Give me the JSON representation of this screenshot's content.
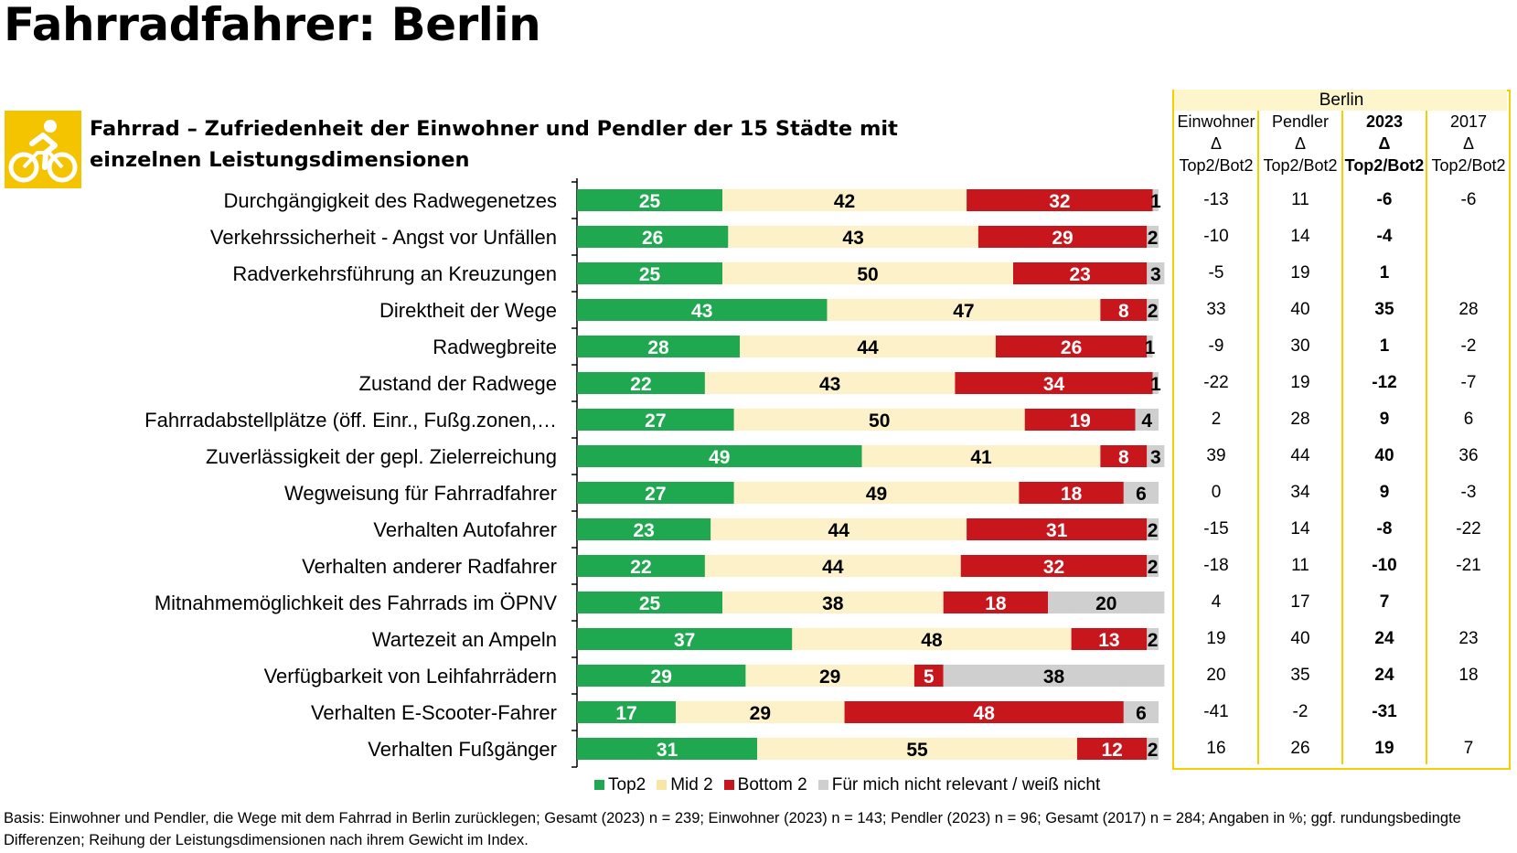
{
  "page": {
    "title": "Fahrradfahrer: Berlin",
    "subtitle": "Fahrrad – Zufriedenheit der Einwohner und Pendler der 15 Städte mit einzelnen Leistungsdimensionen",
    "footnote": "Basis: Einwohner und Pendler, die Wege mit dem Fahrrad in Berlin zurücklegen; Gesamt (2023) n = 239; Einwohner (2023) n = 143; Pendler (2023) n = 96; Gesamt (2017) n = 284; Angaben in %; ggf. rundungsbedingte Differenzen; Reihung der Leistungsdimensionen nach ihrem Gewicht im Index."
  },
  "icon": {
    "name": "bicycle-icon",
    "background": "#f5c400"
  },
  "chart_data": {
    "type": "bar",
    "orientation": "horizontal",
    "stacked": true,
    "unit": "%",
    "title": "Fahrrad – Zufriedenheit der Einwohner und Pendler der 15 Städte mit einzelnen Leistungsdimensionen",
    "categories": [
      "Durchgängigkeit des Radwegenetzes",
      "Verkehrssicherheit - Angst vor Unfällen",
      "Radverkehrsführung an Kreuzungen",
      "Direktheit der Wege",
      "Radwegbreite",
      "Zustand der Radwege",
      "Fahrradabstellplätze (öff. Einr., Fußg.zonen,…",
      "Zuverlässigkeit der gepl. Zielerreichung",
      "Wegweisung für Fahrradfahrer",
      "Verhalten Autofahrer",
      "Verhalten anderer Radfahrer",
      "Mitnahmemöglichkeit des Fahrrads im ÖPNV",
      "Wartezeit an Ampeln",
      "Verfügbarkeit von Leihfahrrädern",
      "Verhalten E-Scooter-Fahrer",
      "Verhalten Fußgänger"
    ],
    "series": [
      {
        "name": "Top2",
        "color": "#1fa84f",
        "label_color": "#ffffff",
        "values": [
          25,
          26,
          25,
          43,
          28,
          22,
          27,
          49,
          27,
          23,
          22,
          25,
          37,
          29,
          17,
          31
        ]
      },
      {
        "name": "Mid 2",
        "color": "#fdf1c9",
        "label_color": "#000000",
        "values": [
          42,
          43,
          50,
          47,
          44,
          43,
          50,
          41,
          49,
          44,
          44,
          38,
          48,
          29,
          29,
          55
        ]
      },
      {
        "name": "Bottom 2",
        "color": "#c8161d",
        "label_color": "#ffffff",
        "values": [
          32,
          29,
          23,
          8,
          26,
          34,
          19,
          8,
          18,
          31,
          32,
          18,
          13,
          5,
          48,
          12
        ]
      },
      {
        "name": "Für mich nicht relevant / weiß nicht",
        "color": "#cfcfcf",
        "label_color": "#000000",
        "values": [
          1,
          2,
          3,
          2,
          1,
          1,
          4,
          3,
          6,
          2,
          2,
          20,
          2,
          38,
          6,
          2
        ]
      }
    ],
    "xlim": [
      0,
      100
    ],
    "legend_position": "bottom"
  },
  "table": {
    "title": "Berlin",
    "columns": [
      {
        "lines": [
          "Einwohner",
          "Δ",
          "Top2/Bot2"
        ],
        "bold": false
      },
      {
        "lines": [
          "Pendler",
          "Δ",
          "Top2/Bot2"
        ],
        "bold": false
      },
      {
        "lines": [
          "2023",
          "Δ",
          "Top2/Bot2"
        ],
        "bold": true
      },
      {
        "lines": [
          "2017",
          "Δ",
          "Top2/Bot2"
        ],
        "bold": false
      }
    ],
    "rows": [
      [
        "-13",
        "11",
        "-6",
        "-6"
      ],
      [
        "-10",
        "14",
        "-4",
        ""
      ],
      [
        "-5",
        "19",
        "1",
        ""
      ],
      [
        "33",
        "40",
        "35",
        "28"
      ],
      [
        "-9",
        "30",
        "1",
        "-2"
      ],
      [
        "-22",
        "19",
        "-12",
        "-7"
      ],
      [
        "2",
        "28",
        "9",
        "6"
      ],
      [
        "39",
        "44",
        "40",
        "36"
      ],
      [
        "0",
        "34",
        "9",
        "-3"
      ],
      [
        "-15",
        "14",
        "-8",
        "-22"
      ],
      [
        "-18",
        "11",
        "-10",
        "-21"
      ],
      [
        "4",
        "17",
        "7",
        ""
      ],
      [
        "19",
        "40",
        "24",
        "23"
      ],
      [
        "20",
        "35",
        "24",
        "18"
      ],
      [
        "-41",
        "-2",
        "-31",
        ""
      ],
      [
        "16",
        "26",
        "19",
        "7"
      ]
    ]
  }
}
